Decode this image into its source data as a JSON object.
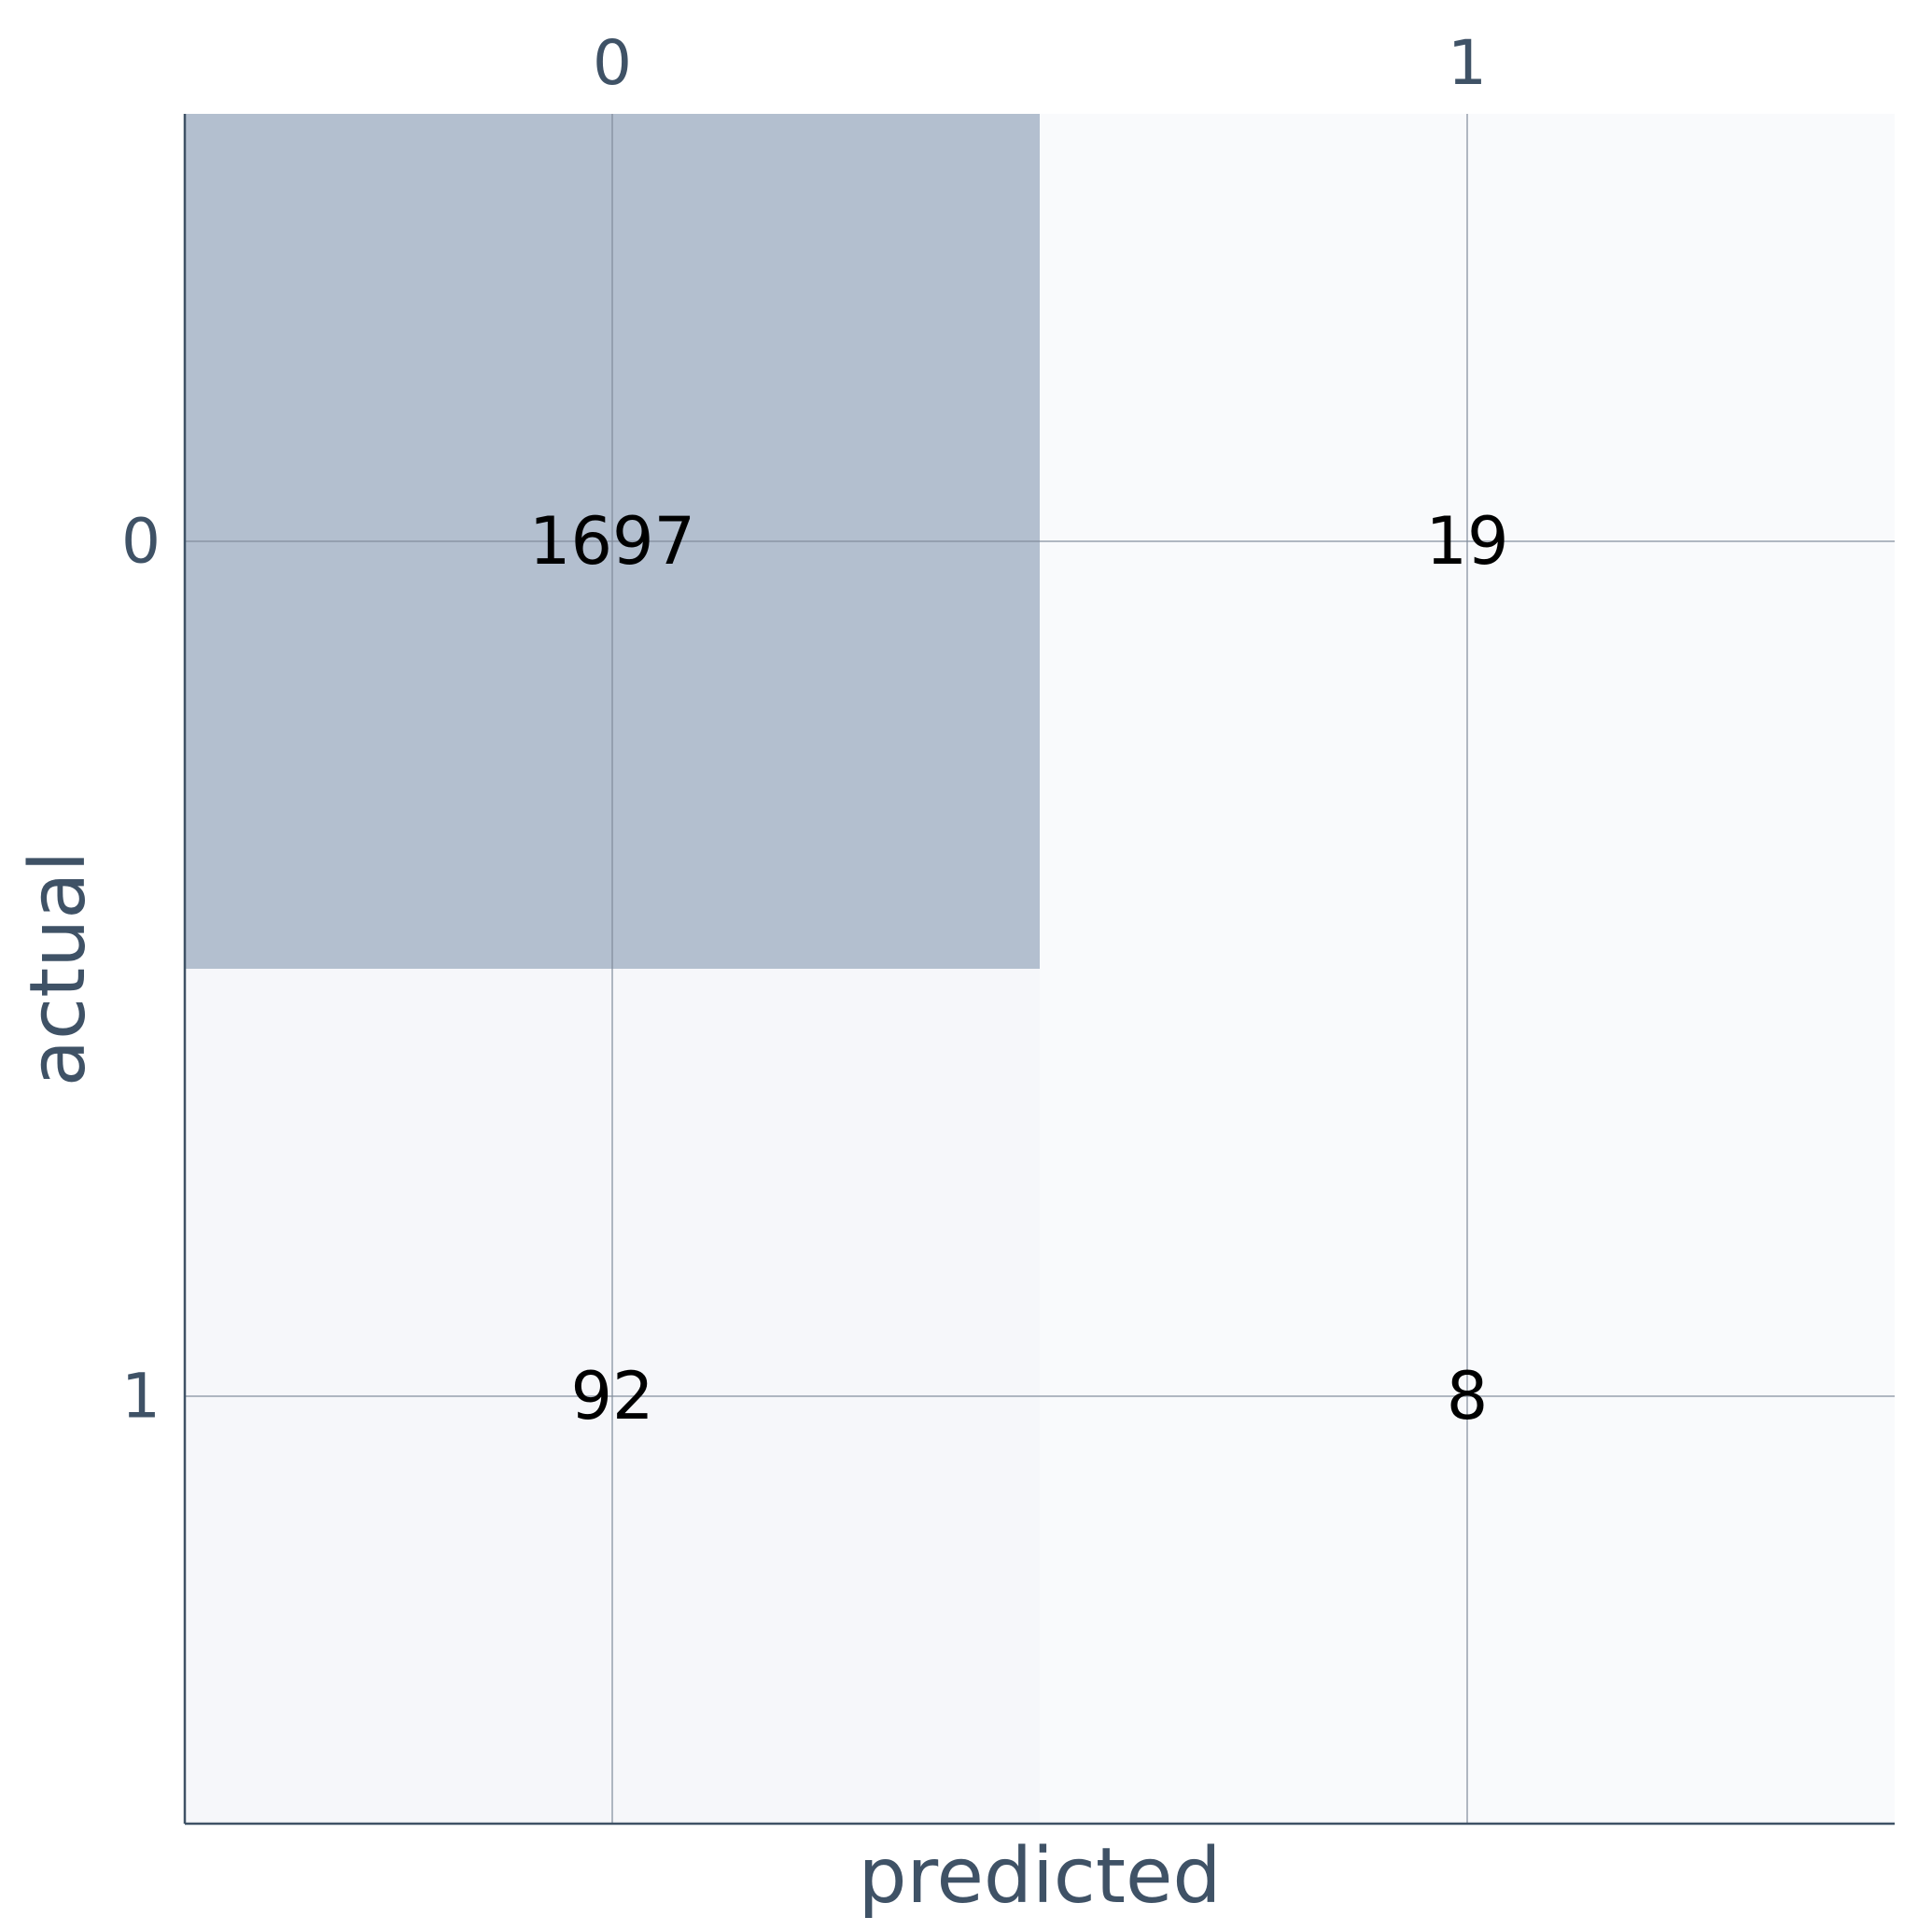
{
  "chart_data": {
    "type": "heatmap",
    "title": "",
    "xlabel": "predicted",
    "ylabel": "actual",
    "x_categories": [
      "0",
      "1"
    ],
    "y_categories": [
      "0",
      "1"
    ],
    "values": [
      [
        1697,
        19
      ],
      [
        92,
        8
      ]
    ],
    "x_tick_position": "top",
    "grid": true,
    "colors": {
      "high": "#b3bfcf",
      "low": "#f9fafc",
      "axis": "#3f5266",
      "grid": "#7f8a99",
      "cell_text": "#000000"
    }
  }
}
